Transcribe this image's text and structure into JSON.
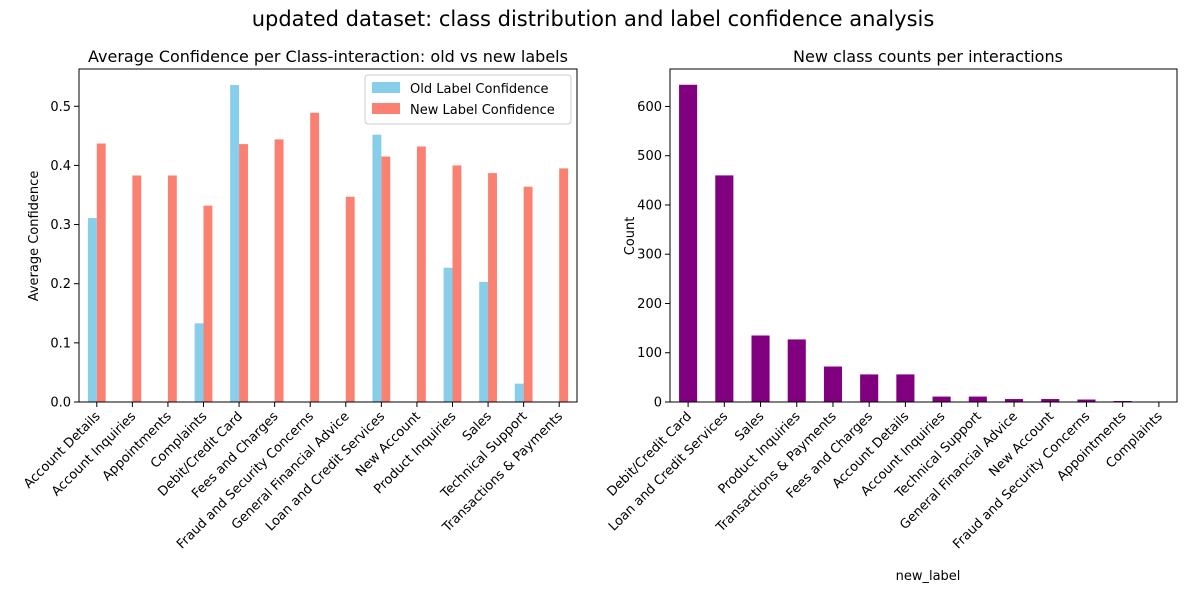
{
  "figure": {
    "suptitle": "updated dataset: class distribution and label confidence analysis"
  },
  "chart_data": [
    {
      "type": "bar",
      "title": "Average Confidence per Class-interaction: old vs new labels",
      "xlabel": "",
      "ylabel": "Average Confidence",
      "ylim": [
        0,
        0.563
      ],
      "yticks": [
        0.0,
        0.1,
        0.2,
        0.3,
        0.4,
        0.5
      ],
      "categories": [
        "Account Details",
        "Account Inquiries",
        "Appointments",
        "Complaints",
        "Debit/Credit Card",
        "Fees and Charges",
        "Fraud and Security Concerns",
        "General Financial Advice",
        "Loan and Credit Services",
        "New Account",
        "Product Inquiries",
        "Sales",
        "Technical Support",
        "Transactions & Payments"
      ],
      "series": [
        {
          "name": "Old Label Confidence",
          "color": "#87CEEB",
          "values": [
            0.311,
            0,
            0,
            0.133,
            0.536,
            0,
            0,
            0,
            0.452,
            0,
            0.227,
            0.203,
            0.031,
            0
          ]
        },
        {
          "name": "New Label Confidence",
          "color": "#FA8072",
          "values": [
            0.437,
            0.383,
            0.383,
            0.332,
            0.436,
            0.444,
            0.489,
            0.347,
            0.415,
            0.432,
            0.4,
            0.387,
            0.364,
            0.395
          ]
        }
      ],
      "legend": "top-right",
      "grid": false
    },
    {
      "type": "bar",
      "title": "New class counts per interactions",
      "xlabel": "new_label",
      "ylabel": "Count",
      "ylim": [
        0,
        676
      ],
      "yticks": [
        0,
        100,
        200,
        300,
        400,
        500,
        600
      ],
      "color": "#800080",
      "categories": [
        "Debit/Credit Card",
        "Loan and Credit Services",
        "Sales",
        "Product Inquiries",
        "Transactions & Payments",
        "Fees and Charges",
        "Account Details",
        "Account Inquiries",
        "Technical Support",
        "General Financial Advice",
        "New Account",
        "Fraud and Security Concerns",
        "Appointments",
        "Complaints"
      ],
      "values": [
        644,
        460,
        135,
        127,
        72,
        56,
        56,
        11,
        11,
        6,
        6,
        5,
        2,
        1
      ],
      "legend": "none",
      "grid": false
    }
  ]
}
